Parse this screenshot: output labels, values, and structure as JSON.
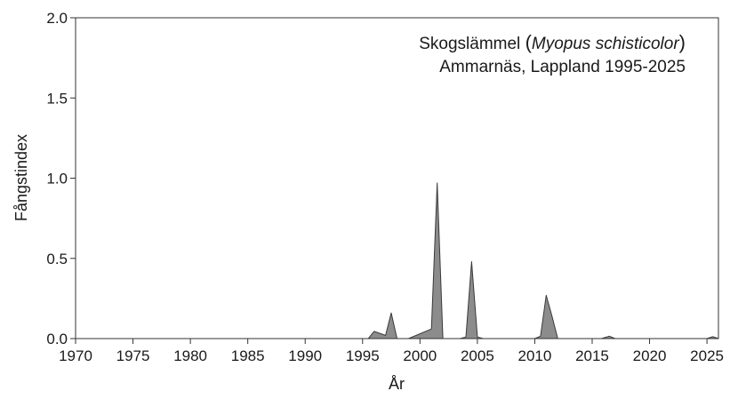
{
  "chart_data": {
    "type": "area",
    "title_line1": {
      "prefix": "Skogslämmel ",
      "open_paren": "(",
      "species": "Myopus schisticolor",
      "close_paren": ")"
    },
    "title_line2": "Ammarnäs, Lappland 1995-2025",
    "xlabel": "År",
    "ylabel": "Fångstindex",
    "xlim": [
      1970,
      2026
    ],
    "ylim": [
      0,
      2.0
    ],
    "x_ticks": [
      "1970",
      "1975",
      "1980",
      "1985",
      "1990",
      "1995",
      "2000",
      "2005",
      "2010",
      "2015",
      "2020",
      "2025"
    ],
    "y_ticks": [
      "0.0",
      "0.5",
      "1.0",
      "1.5",
      "2.0"
    ],
    "grid": false,
    "fill_color": "#8c8c8c",
    "line_color": "#3a3a3a",
    "segments": [
      {
        "points": [
          [
            1995.5,
            0.0
          ],
          [
            1996.0,
            0.045
          ],
          [
            1997.0,
            0.02
          ],
          [
            1997.5,
            0.16
          ],
          [
            1998.0,
            0.0
          ]
        ]
      },
      {
        "points": [
          [
            1999.0,
            0.0
          ],
          [
            2001.0,
            0.06
          ],
          [
            2001.5,
            0.97
          ],
          [
            2002.0,
            0.0
          ]
        ]
      },
      {
        "points": [
          [
            2003.5,
            0.0
          ],
          [
            2004.0,
            0.01
          ],
          [
            2004.5,
            0.48
          ],
          [
            2005.0,
            0.01
          ],
          [
            2005.5,
            0.0
          ]
        ]
      },
      {
        "points": [
          [
            2010.0,
            0.0
          ],
          [
            2010.5,
            0.015
          ],
          [
            2011.0,
            0.27
          ],
          [
            2011.5,
            0.14
          ],
          [
            2012.0,
            0.0
          ]
        ]
      },
      {
        "points": [
          [
            2015.8,
            0.0
          ],
          [
            2016.5,
            0.015
          ],
          [
            2017.0,
            0.0
          ]
        ]
      },
      {
        "points": [
          [
            2025.0,
            0.0
          ],
          [
            2025.5,
            0.012
          ],
          [
            2026.0,
            0.0
          ]
        ]
      }
    ]
  }
}
